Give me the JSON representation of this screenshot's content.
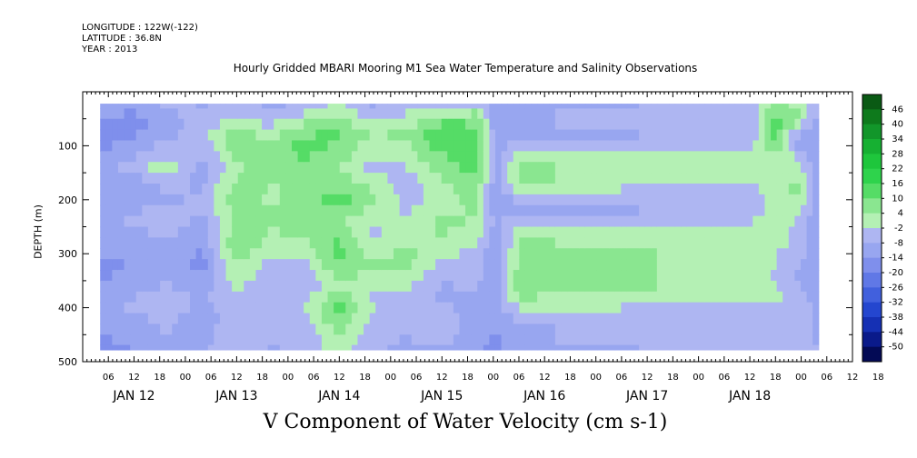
{
  "header": {
    "longitude": "LONGITUDE : 122W(-122)",
    "latitude": "LATITUDE : 36.8N",
    "year": "YEAR : 2013",
    "title": "Hourly Gridded MBARI Mooring M1 Sea Water Temperature and Salinity Observations"
  },
  "chart_data": {
    "type": "heatmap",
    "title": "Hourly Gridded MBARI Mooring M1 Sea Water Temperature and Salinity Observations",
    "xlabel": "V Component of Water Velocity (cm s-1)",
    "ylabel": "DEPTH (m)",
    "y_range": [
      20,
      500
    ],
    "y_inverted": true,
    "y_ticks": [
      100,
      200,
      300,
      400,
      500
    ],
    "x_hour_tick_labels": [
      "06",
      "12",
      "18",
      "00",
      "06",
      "12",
      "18",
      "00",
      "06",
      "12",
      "18",
      "00",
      "06",
      "12",
      "18",
      "00",
      "06",
      "12",
      "18",
      "00",
      "06",
      "12",
      "18",
      "00",
      "06",
      "12",
      "18",
      "00",
      "06",
      "12",
      "18"
    ],
    "x_day_labels": [
      "JAN 12",
      "JAN 13",
      "JAN 14",
      "JAN 15",
      "JAN 16",
      "JAN 17",
      "JAN 18"
    ],
    "colorbar_labels": [
      "46",
      "40",
      "34",
      "28",
      "22",
      "16",
      "10",
      "4",
      "-2",
      "-8",
      "-14",
      "-20",
      "-26",
      "-32",
      "-38",
      "-44",
      "-50"
    ],
    "colorbar_colors": [
      "#0a5a14",
      "#0e7a1c",
      "#12962a",
      "#16b032",
      "#1ec63c",
      "#2ed34c",
      "#55dc66",
      "#8ae690",
      "#b4f0b4",
      "#aeb6f2",
      "#98a6f0",
      "#7f8fec",
      "#6078e6",
      "#4160dd",
      "#2446cf",
      "#1530b4",
      "#0a1a8a",
      "#030a55"
    ],
    "colorbar_max": 49,
    "colorbar_min": -53,
    "data_x_range_days": [
      0.17,
      7.17
    ],
    "depth_rows": [
      22,
      40,
      60,
      80,
      100,
      120,
      140,
      160,
      180,
      200,
      220,
      240,
      260,
      280,
      300,
      320,
      340,
      360,
      380,
      400,
      420,
      440,
      460,
      478
    ],
    "columns": [
      {
        "day": 0.17,
        "v": [
          -10,
          -12,
          -14,
          -16,
          -15,
          -12,
          -10,
          -11,
          -13,
          -12,
          -10,
          -9,
          -11,
          -12,
          -13,
          -14,
          -14,
          -12,
          -10,
          -9,
          -11,
          -12,
          -14,
          -15
        ]
      },
      {
        "day": 0.5,
        "v": [
          -12,
          -14,
          -16,
          -14,
          -11,
          -8,
          -6,
          -9,
          -11,
          -10,
          -8,
          -7,
          -9,
          -11,
          -12,
          -13,
          -12,
          -10,
          -8,
          -7,
          -9,
          -10,
          -12,
          -13
        ]
      },
      {
        "day": 0.83,
        "v": [
          -6,
          -8,
          -10,
          -9,
          -5,
          -2,
          2,
          -3,
          -7,
          -9,
          -6,
          -4,
          -6,
          -8,
          -10,
          -11,
          -9,
          -7,
          -5,
          -4,
          -6,
          -7,
          -9,
          -10
        ]
      },
      {
        "day": 1.17,
        "v": [
          -8,
          -7,
          -5,
          -3,
          -6,
          -8,
          -9,
          -10,
          -8,
          -6,
          -7,
          -10,
          -12,
          -13,
          -14,
          -15,
          -13,
          -11,
          -9,
          -10,
          -12,
          -11,
          -9,
          -8
        ]
      },
      {
        "day": 1.5,
        "v": [
          -4,
          -2,
          2,
          6,
          8,
          5,
          2,
          4,
          7,
          8,
          6,
          5,
          8,
          10,
          7,
          4,
          2,
          0,
          -2,
          -4,
          -3,
          -2,
          -4,
          -5
        ]
      },
      {
        "day": 1.83,
        "v": [
          -9,
          -6,
          -3,
          2,
          4,
          6,
          8,
          5,
          3,
          2,
          4,
          6,
          3,
          1,
          -2,
          -4,
          -6,
          -7,
          -5,
          -3,
          -4,
          -6,
          -7,
          -8
        ]
      },
      {
        "day": 2.17,
        "v": [
          -6,
          -2,
          4,
          9,
          12,
          10,
          7,
          5,
          6,
          8,
          9,
          7,
          5,
          3,
          0,
          -3,
          -5,
          -6,
          -4,
          -2,
          -3,
          -5,
          -6,
          -7
        ]
      },
      {
        "day": 2.5,
        "v": [
          0,
          3,
          7,
          10,
          8,
          6,
          4,
          6,
          9,
          11,
          8,
          5,
          7,
          10,
          12,
          9,
          6,
          4,
          8,
          11,
          9,
          6,
          3,
          2
        ]
      },
      {
        "day": 2.83,
        "v": [
          -8,
          -5,
          -1,
          3,
          1,
          -2,
          -4,
          -1,
          3,
          5,
          2,
          -1,
          -3,
          -2,
          1,
          4,
          2,
          -1,
          -3,
          -2,
          -4,
          -5,
          -6,
          -7
        ]
      },
      {
        "day": 3.17,
        "v": [
          -4,
          -2,
          2,
          5,
          3,
          1,
          -2,
          -4,
          -6,
          -5,
          -3,
          -1,
          1,
          3,
          5,
          4,
          2,
          -1,
          -3,
          -5,
          -6,
          -7,
          -8,
          -9
        ]
      },
      {
        "day": 3.5,
        "v": [
          -6,
          2,
          10,
          14,
          12,
          9,
          7,
          4,
          2,
          1,
          3,
          5,
          4,
          2,
          -1,
          -4,
          -6,
          -8,
          -9,
          -7,
          -5,
          -4,
          -6,
          -8
        ]
      },
      {
        "day": 3.83,
        "v": [
          -2,
          4,
          9,
          12,
          14,
          13,
          11,
          9,
          8,
          6,
          4,
          3,
          2,
          -1,
          -3,
          -5,
          -6,
          -7,
          -8,
          -9,
          -10,
          -11,
          -12,
          -12
        ]
      },
      {
        "day": 4.03,
        "v": [
          -10,
          -11,
          -12,
          -12,
          -11,
          -10,
          -10,
          -11,
          -12,
          -12,
          -11,
          -10,
          -11,
          -12,
          -13,
          -13,
          -12,
          -11,
          -10,
          -11,
          -12,
          -13,
          -14,
          -15
        ]
      },
      {
        "day": 4.25,
        "v": [
          -9,
          -8,
          -8,
          -9,
          -4,
          2,
          4,
          4,
          1,
          -6,
          -9,
          -3,
          2,
          4,
          5,
          5,
          6,
          6,
          4,
          -1,
          -6,
          -8,
          -8,
          -9
        ]
      },
      {
        "day": 5.25,
        "v": [
          -8,
          -7,
          -7,
          -8,
          -4,
          1,
          3,
          3,
          -2,
          -7,
          -8,
          -4,
          1,
          3,
          4,
          4,
          4,
          4,
          2,
          -2,
          -6,
          -7,
          -7,
          -8
        ]
      },
      {
        "day": 6.25,
        "v": [
          -6,
          -6,
          -6,
          -6,
          -3,
          1,
          2,
          2,
          -3,
          -6,
          -6,
          -3,
          1,
          2,
          3,
          3,
          3,
          3,
          2,
          -2,
          -5,
          -6,
          -6,
          -6
        ]
      },
      {
        "day": 6.55,
        "v": [
          -5,
          -5,
          -4,
          -4,
          -2,
          0,
          1,
          0,
          -3,
          -5,
          -5,
          -2,
          0,
          1,
          2,
          2,
          2,
          2,
          1,
          -2,
          -4,
          -5,
          -6,
          -6
        ]
      },
      {
        "day": 6.75,
        "v": [
          6,
          10,
          14,
          12,
          8,
          4,
          2,
          2,
          1,
          0,
          2,
          4,
          3,
          1,
          -1,
          -2,
          -3,
          -2,
          -1,
          -3,
          -4,
          -5,
          -6,
          -7
        ]
      },
      {
        "day": 6.95,
        "v": [
          3,
          6,
          2,
          -6,
          -8,
          -3,
          2,
          4,
          6,
          4,
          1,
          -2,
          -4,
          -5,
          -6,
          -7,
          -8,
          -6,
          -4,
          -2,
          -3,
          -5,
          -6,
          -7
        ]
      },
      {
        "day": 7.17,
        "v": [
          -8,
          -9,
          -10,
          -11,
          -12,
          -12,
          -11,
          -10,
          -10,
          -11,
          -12,
          -12,
          -11,
          -10,
          -9,
          -10,
          -11,
          -12,
          -12,
          -11,
          -10,
          -9,
          -8,
          -4
        ]
      }
    ]
  }
}
